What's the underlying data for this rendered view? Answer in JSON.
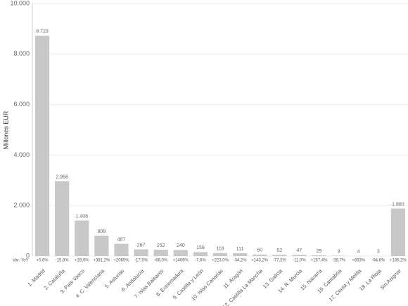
{
  "chart_data": {
    "type": "bar",
    "y_label": "Millones EUR",
    "categories": [
      "1. Madrid",
      "2. Cataluña",
      "3. País Vasco",
      "4. C. Valenciana",
      "5. Asturias",
      "6. Andalucía",
      "7. Islas Baleares",
      "8. Extremadura",
      "9. Castilla y León",
      "10. Islas Canarias",
      "11. Aragón",
      "12. Castilla La Mancha",
      "13. Galicia",
      "14. R. Murcia",
      "15. Navarra",
      "16. Cantabria",
      "17. Ceuta y Melilla",
      "18. La Rioja",
      "Sin Asignar"
    ],
    "values": [
      8723,
      2968,
      1408,
      808,
      487,
      267,
      252,
      240,
      159,
      118,
      111,
      60,
      52,
      47,
      29,
      9,
      4,
      3,
      1880
    ],
    "value_labels": [
      "8.723",
      "2.968",
      "1.408",
      "808",
      "487",
      "267",
      "252",
      "240",
      "159",
      "118",
      "111",
      "60",
      "52",
      "47",
      "29",
      "9",
      "4",
      "3",
      "1.880"
    ],
    "color": "#c8c8c8",
    "yoy": {
      "label": "Var. YoY",
      "values": [
        "+0,6%",
        "-15,8%",
        "+28,5%",
        "+381,2%",
        "+2065%",
        "-17,5%",
        "-68,0%",
        "+1406%",
        "-7,6%",
        "+223,0%",
        "-34,2%",
        "+143,2%",
        "-77,2%",
        "-11,0%",
        "+157,4%",
        "-38,7%",
        "+893%",
        "-94,6%",
        "+185,2%"
      ],
      "positive_color": "#2e7d32",
      "negative_color": "#c62828"
    },
    "ylim": [
      0,
      10000
    ],
    "yticks": [
      0,
      {
        "value": 2000,
        "label": "2.000"
      },
      {
        "value": 4000,
        "label": "4.000"
      },
      {
        "value": 6000,
        "label": "6.000"
      },
      {
        "value": 8000,
        "label": "8.000"
      },
      {
        "value": 10000,
        "label": "10.000"
      }
    ],
    "grid": true
  }
}
